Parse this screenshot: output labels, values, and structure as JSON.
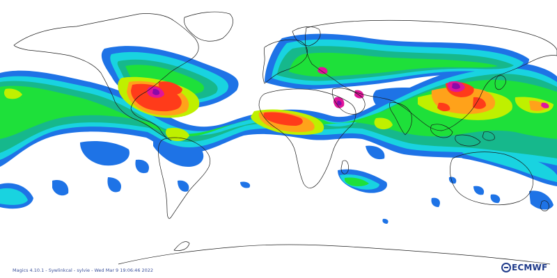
{
  "footer": {
    "software_line": "Magics 4.10.1 - Sywlinkcal - sylvie - Wed Mar  9 19:06:46 2022"
  },
  "logo": {
    "text": "ECMWF",
    "icon": "ecmwf-logo-icon"
  },
  "colors": {
    "background": "#ffffff",
    "coastline": "#1a1a1a",
    "levels": [
      "#1e73e6",
      "#19d3e0",
      "#16b88c",
      "#1ee03a",
      "#bff000",
      "#ffa21a",
      "#ff3b1a",
      "#e0159a",
      "#8a0aa8"
    ]
  }
}
